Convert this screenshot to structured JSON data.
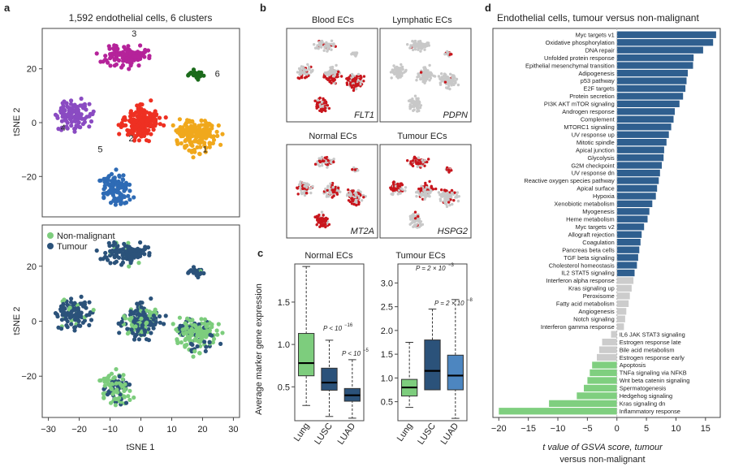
{
  "colors": {
    "cluster1": "#f0a81c",
    "cluster2": "#ee3022",
    "cluster3": "#b5239a",
    "cluster4": "#8a4bc2",
    "cluster5": "#2e6bb5",
    "cluster6": "#1b6b1b",
    "non_malignant": "#7dcd7d",
    "tumour": "#2b527a",
    "up": "#2f5f8f",
    "ns": "#cccccc",
    "down": "#7fcf7f",
    "red": "#c8161d",
    "grey_pt": "#c8c8c8"
  },
  "panel_a": {
    "letter": "a",
    "title": "1,592 endothelial cells, 6 clusters",
    "xlabel": "tSNE 1",
    "ylabel": "tSNE 2",
    "xticks": [
      "−30",
      "−20",
      "−10",
      "0",
      "10",
      "20",
      "30"
    ],
    "yticks": [
      "20",
      "0",
      "−20"
    ],
    "cluster_labels": [
      "1",
      "2",
      "3",
      "4",
      "5",
      "6"
    ],
    "legend": [
      "Non-malignant",
      "Tumour"
    ]
  },
  "panel_b": {
    "letter": "b",
    "titles": [
      "Blood ECs",
      "Lymphatic ECs",
      "Normal ECs",
      "Tumour ECs"
    ],
    "genes": [
      "FLT1",
      "PDPN",
      "MT2A",
      "HSPG2"
    ]
  },
  "panel_c": {
    "letter": "c",
    "ylabel": "Average marker gene expression",
    "normal": {
      "title": "Normal ECs",
      "categories": [
        "Lung",
        "LUSC",
        "LUAD"
      ],
      "yticks": [
        "0.5",
        "1.0",
        "1.5"
      ],
      "annotations": [
        "P < 10",
        "−16",
        "P < 10",
        "−5"
      ]
    },
    "tumour": {
      "title": "Tumour ECs",
      "categories": [
        "Lung",
        "LUSC",
        "LUAD"
      ],
      "yticks": [
        "0.5",
        "1.0",
        "1.5",
        "2.0",
        "2.5",
        "3.0"
      ],
      "annotations": [
        "P = 2 × 10",
        "−3",
        "P = 2 × 10",
        "−8"
      ]
    }
  },
  "panel_d": {
    "letter": "d",
    "title": "Endothelial cells, tumour versus non-malignant",
    "xlabel_line1": "t value of GSVA score, tumour",
    "xlabel_line2": "versus non-malignant",
    "xticks": [
      "−20",
      "−15",
      "−10",
      "−5",
      "0",
      "5",
      "10",
      "15"
    ]
  },
  "chart_data": [
    {
      "type": "scatter",
      "title": "1,592 endothelial cells, 6 clusters",
      "xlabel": "tSNE 1",
      "ylabel": "tSNE 2",
      "xlim": [
        -32,
        32
      ],
      "ylim": [
        -35,
        35
      ],
      "series": [
        {
          "name": "1",
          "center": [
            18,
            -5
          ]
        },
        {
          "name": "2",
          "center": [
            0,
            0
          ]
        },
        {
          "name": "3",
          "center": [
            -5,
            25
          ]
        },
        {
          "name": "4",
          "center": [
            -22,
            3
          ]
        },
        {
          "name": "5",
          "center": [
            -8,
            -25
          ]
        },
        {
          "name": "6",
          "center": [
            18,
            18
          ]
        }
      ]
    },
    {
      "type": "scatter",
      "xlabel": "tSNE 1",
      "ylabel": "tSNE 2",
      "xlim": [
        -32,
        32
      ],
      "ylim": [
        -35,
        35
      ],
      "series": [
        {
          "name": "Non-malignant"
        },
        {
          "name": "Tumour"
        }
      ]
    },
    {
      "type": "box",
      "title": "Normal ECs",
      "ylabel": "Average marker gene expression",
      "categories": [
        "Lung",
        "LUSC",
        "LUAD"
      ],
      "ylim": [
        0.1,
        1.95
      ],
      "boxes": [
        {
          "min": 0.28,
          "q1": 0.63,
          "median": 0.78,
          "q3": 1.13,
          "max": 1.92
        },
        {
          "min": 0.15,
          "q1": 0.46,
          "median": 0.55,
          "q3": 0.72,
          "max": 1.05
        },
        {
          "min": 0.13,
          "q1": 0.33,
          "median": 0.4,
          "q3": 0.48,
          "max": 0.82
        }
      ]
    },
    {
      "type": "box",
      "title": "Tumour ECs",
      "categories": [
        "Lung",
        "LUSC",
        "LUAD"
      ],
      "ylim": [
        0.1,
        3.4
      ],
      "boxes": [
        {
          "min": 0.38,
          "q1": 0.62,
          "median": 0.8,
          "q3": 0.97,
          "max": 1.75
        },
        {
          "min": 0.75,
          "q1": 0.75,
          "median": 1.15,
          "q3": 1.8,
          "max": 2.45
        },
        {
          "min": 0.15,
          "q1": 0.75,
          "median": 1.05,
          "q3": 1.48,
          "max": 2.65
        }
      ]
    },
    {
      "type": "bar",
      "title": "Endothelial cells, tumour versus non-malignant",
      "xlabel": "t value of GSVA score, tumour versus non-malignant",
      "xlim": [
        -21,
        17.5
      ],
      "categories": [
        "Myc targets v1",
        "Oxidative phosphorylation",
        "DNA repair",
        "Unfolded protein response",
        "Epithelial mesenchymal transition",
        "Adipogenesis",
        "p53 pathway",
        "E2F targets",
        "Protein secretion",
        "PI3K AKT mTOR signaling",
        "Androgen response",
        "Complement",
        "MTORC1 signaling",
        "UV response up",
        "Mitotic spindle",
        "Apical junction",
        "Glycolysis",
        "G2M checkpoint",
        "UV response dn",
        "Reactive oxygen species pathway",
        "Apical surface",
        "Hypoxia",
        "Xenobiotic metabolism",
        "Myogenesis",
        "Heme metabolism",
        "Myc targets v2",
        "Allograft rejection",
        "Coagulation",
        "Pancreas beta cells",
        "TGF beta signaling",
        "Cholesterol homeostasis",
        "IL2 STAT5 signaling",
        "Interferon alpha response",
        "Kras signaling up",
        "Peroxisome",
        "Fatty acid metabolism",
        "Angiogenesis",
        "Notch signaling",
        "Interferon gamma response",
        "IL6 JAK STAT3 signaling",
        "Estrogen response late",
        "Bile acid metabolism",
        "Estrogen response early",
        "Apoptosis",
        "TNFa signaling via NFKB",
        "Wnt beta catenin signaling",
        "Spermatogenesis",
        "Hedgehog signaling",
        "Kras signaling dn",
        "Inflammatory response"
      ],
      "values": [
        16.8,
        16.3,
        14.6,
        13.0,
        12.9,
        12.0,
        11.8,
        11.6,
        11.2,
        10.6,
        9.8,
        9.6,
        9.2,
        8.8,
        8.4,
        8.0,
        7.9,
        7.6,
        7.3,
        7.1,
        6.8,
        6.6,
        6.0,
        5.5,
        5.2,
        4.6,
        4.2,
        4.0,
        3.8,
        3.6,
        3.4,
        3.0,
        2.8,
        2.5,
        2.2,
        2.0,
        1.6,
        1.4,
        1.2,
        -1.0,
        -2.5,
        -3.0,
        -3.4,
        -4.2,
        -4.6,
        -5.0,
        -5.6,
        -6.8,
        -11.5,
        -20.0
      ],
      "group": [
        "up",
        "up",
        "up",
        "up",
        "up",
        "up",
        "up",
        "up",
        "up",
        "up",
        "up",
        "up",
        "up",
        "up",
        "up",
        "up",
        "up",
        "up",
        "up",
        "up",
        "up",
        "up",
        "up",
        "up",
        "up",
        "up",
        "up",
        "up",
        "up",
        "up",
        "up",
        "up",
        "ns",
        "ns",
        "ns",
        "ns",
        "ns",
        "ns",
        "ns",
        "ns",
        "ns",
        "ns",
        "ns",
        "down",
        "down",
        "down",
        "down",
        "down",
        "down",
        "down"
      ]
    }
  ]
}
